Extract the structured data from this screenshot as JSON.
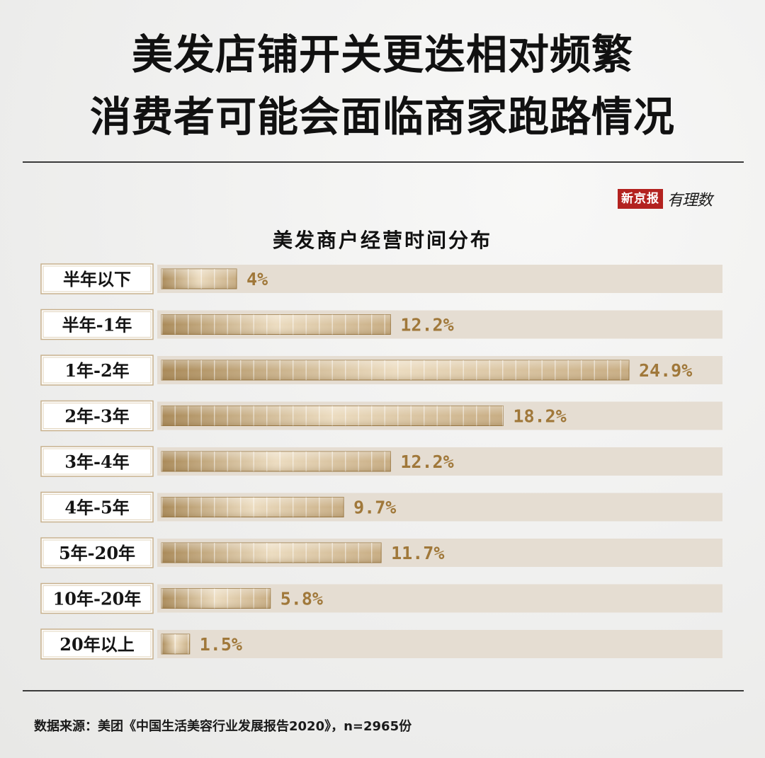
{
  "headline": {
    "line1": "美发店铺开关更迭相对频繁",
    "line2": "消费者可能会面临商家跑路情况"
  },
  "brand": {
    "name": "新京报",
    "sub": "有理数"
  },
  "colors": {
    "accent": "#a0783a",
    "brand_red": "#b3221f",
    "track": "#e5ddd2"
  },
  "chart_data": {
    "type": "bar",
    "orientation": "horizontal",
    "title": "美发商户经营时间分布",
    "categories": [
      "半年以下",
      "半年-1年",
      "1年-2年",
      "2年-3年",
      "3年-4年",
      "4年-5年",
      "5年-20年",
      "10年-20年",
      "20年以上"
    ],
    "values": [
      4,
      12.2,
      24.9,
      18.2,
      12.2,
      9.7,
      11.7,
      5.8,
      1.5
    ],
    "value_labels": [
      "4%",
      "12.2%",
      "24.9%",
      "18.2%",
      "12.2%",
      "9.7%",
      "11.7%",
      "5.8%",
      "1.5%"
    ],
    "unit": "%",
    "xlim": [
      0,
      30
    ],
    "grid": false,
    "legend": "none"
  },
  "source": "数据来源：美团《中国生活美容行业发展报告2020》，n=2965份"
}
